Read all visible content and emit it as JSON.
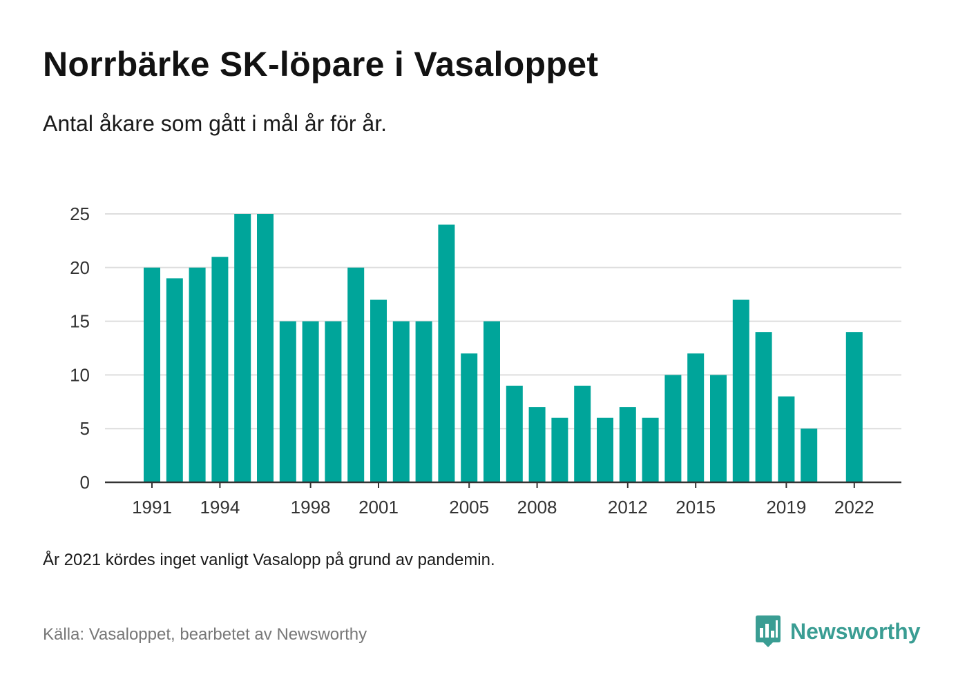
{
  "header": {
    "title": "Norrbärke SK-löpare i Vasaloppet",
    "subtitle": "Antal åkare som gått i mål år för år."
  },
  "footer": {
    "note": "År 2021 kördes inget vanligt Vasalopp på grund av pandemin.",
    "source": "Källa: Vasaloppet, bearbetet av Newsworthy",
    "brand_name": "Newsworthy",
    "brand_icon": "bar-chart-speech-bubble-icon"
  },
  "colors": {
    "bar": "#00a59a",
    "grid": "#dddddd",
    "axis": "#333333",
    "brand": "#3a9d93"
  },
  "chart_data": {
    "type": "bar",
    "x": [
      1991,
      1992,
      1993,
      1994,
      1995,
      1996,
      1997,
      1998,
      1999,
      2000,
      2001,
      2002,
      2003,
      2004,
      2005,
      2006,
      2007,
      2008,
      2009,
      2010,
      2011,
      2012,
      2013,
      2014,
      2015,
      2016,
      2017,
      2018,
      2019,
      2020,
      2021,
      2022
    ],
    "values": [
      20,
      19,
      20,
      21,
      25,
      25,
      15,
      15,
      15,
      20,
      17,
      15,
      15,
      24,
      12,
      15,
      9,
      7,
      6,
      9,
      6,
      7,
      6,
      10,
      12,
      10,
      17,
      14,
      8,
      5,
      null,
      14
    ],
    "x_tick_labels": [
      "1991",
      "1994",
      "1998",
      "2001",
      "2005",
      "2008",
      "2012",
      "2015",
      "2019",
      "2022"
    ],
    "y_ticks": [
      0,
      5,
      10,
      15,
      20,
      25
    ],
    "ylim": [
      0,
      25
    ],
    "xlabel": "",
    "ylabel": "",
    "grid": "horizontal",
    "legend": "none"
  }
}
